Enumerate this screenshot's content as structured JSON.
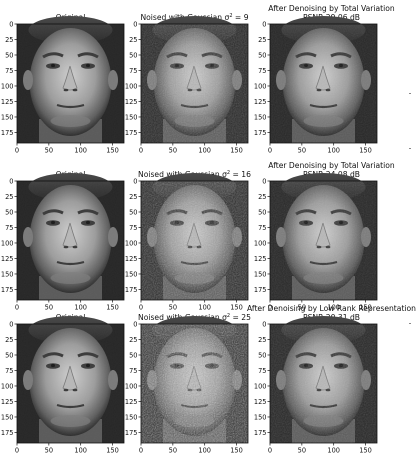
{
  "chart_data": [
    {
      "type": "image",
      "title_main": "Original",
      "title_sup": "",
      "title_line2": "",
      "xticks": [
        "0",
        "50",
        "100",
        "150"
      ],
      "yticks": [
        "0",
        "25",
        "50",
        "75",
        "100",
        "125",
        "150",
        "175"
      ],
      "x_range": [
        0,
        168
      ],
      "y_range": [
        0,
        192
      ],
      "noise": 0.05
    },
    {
      "type": "image",
      "title_main": "Noised with Gaussian σ",
      "title_sup": "2",
      "title_tail": " = 9",
      "title_line2": "",
      "xticks": [
        "0",
        "50",
        "100",
        "150"
      ],
      "yticks": [
        "0",
        "25",
        "50",
        "75",
        "100",
        "125",
        "150",
        "175"
      ],
      "x_range": [
        0,
        168
      ],
      "y_range": [
        0,
        192
      ],
      "noise": 0.35
    },
    {
      "type": "image",
      "title_main": "After Denoising by Total Variation",
      "title_sup": "",
      "title_line2": "PSNR 29.06 dB",
      "xticks": [
        "0",
        "50",
        "100",
        "150"
      ],
      "yticks": [
        "0",
        "25",
        "50",
        "75",
        "100",
        "125",
        "150",
        "175"
      ],
      "x_range": [
        0,
        168
      ],
      "y_range": [
        0,
        192
      ],
      "noise": 0.15
    },
    {
      "type": "image",
      "title_main": "Original",
      "title_sup": "",
      "title_line2": "",
      "xticks": [
        "0",
        "50",
        "100",
        "150"
      ],
      "yticks": [
        "0",
        "25",
        "50",
        "75",
        "100",
        "125",
        "150",
        "175"
      ],
      "x_range": [
        0,
        168
      ],
      "y_range": [
        0,
        192
      ],
      "noise": 0.05
    },
    {
      "type": "image",
      "title_main": "Noised with Gaussian σ",
      "title_sup": "2",
      "title_tail": " = 16",
      "title_line2": "",
      "xticks": [
        "0",
        "50",
        "100",
        "150"
      ],
      "yticks": [
        "0",
        "25",
        "50",
        "75",
        "100",
        "125",
        "150",
        "175"
      ],
      "x_range": [
        0,
        168
      ],
      "y_range": [
        0,
        192
      ],
      "noise": 0.5
    },
    {
      "type": "image",
      "title_main": "After Denoising by Total Variation",
      "title_sup": "",
      "title_line2": "PSNR 24.08 dB",
      "xticks": [
        "0",
        "50",
        "100",
        "150"
      ],
      "yticks": [
        "0",
        "25",
        "50",
        "75",
        "100",
        "125",
        "150",
        "175"
      ],
      "x_range": [
        0,
        168
      ],
      "y_range": [
        0,
        192
      ],
      "noise": 0.2
    },
    {
      "type": "image",
      "title_main": "Original",
      "title_sup": "",
      "title_line2": "",
      "xticks": [
        "0",
        "50",
        "100",
        "150"
      ],
      "yticks": [
        "0",
        "25",
        "50",
        "75",
        "100",
        "125",
        "150",
        "175"
      ],
      "x_range": [
        0,
        168
      ],
      "y_range": [
        0,
        192
      ],
      "noise": 0.05
    },
    {
      "type": "image",
      "title_main": "Noised with Gaussian σ",
      "title_sup": "2",
      "title_tail": " = 25",
      "title_line2": "",
      "xticks": [
        "0",
        "50",
        "100",
        "150"
      ],
      "yticks": [
        "0",
        "25",
        "50",
        "75",
        "100",
        "125",
        "150",
        "175"
      ],
      "x_range": [
        0,
        168
      ],
      "y_range": [
        0,
        192
      ],
      "noise": 0.75
    },
    {
      "type": "image",
      "title_main": "After Denoising by Low Rank Representation",
      "title_sup": "",
      "title_line2": "PSNR 20.31 dB",
      "xticks": [
        "0",
        "50",
        "100",
        "150"
      ],
      "yticks": [
        "0",
        "25",
        "50",
        "75",
        "100",
        "125",
        "150",
        "175"
      ],
      "x_range": [
        0,
        168
      ],
      "y_range": [
        0,
        192
      ],
      "noise": 0.25
    }
  ],
  "colors": {
    "axis": "#111111",
    "face_bg": "#262626",
    "skin": "#9a9a9a",
    "skin_light": "#c8c8c8",
    "feature_dark": "#2a2a2a"
  }
}
